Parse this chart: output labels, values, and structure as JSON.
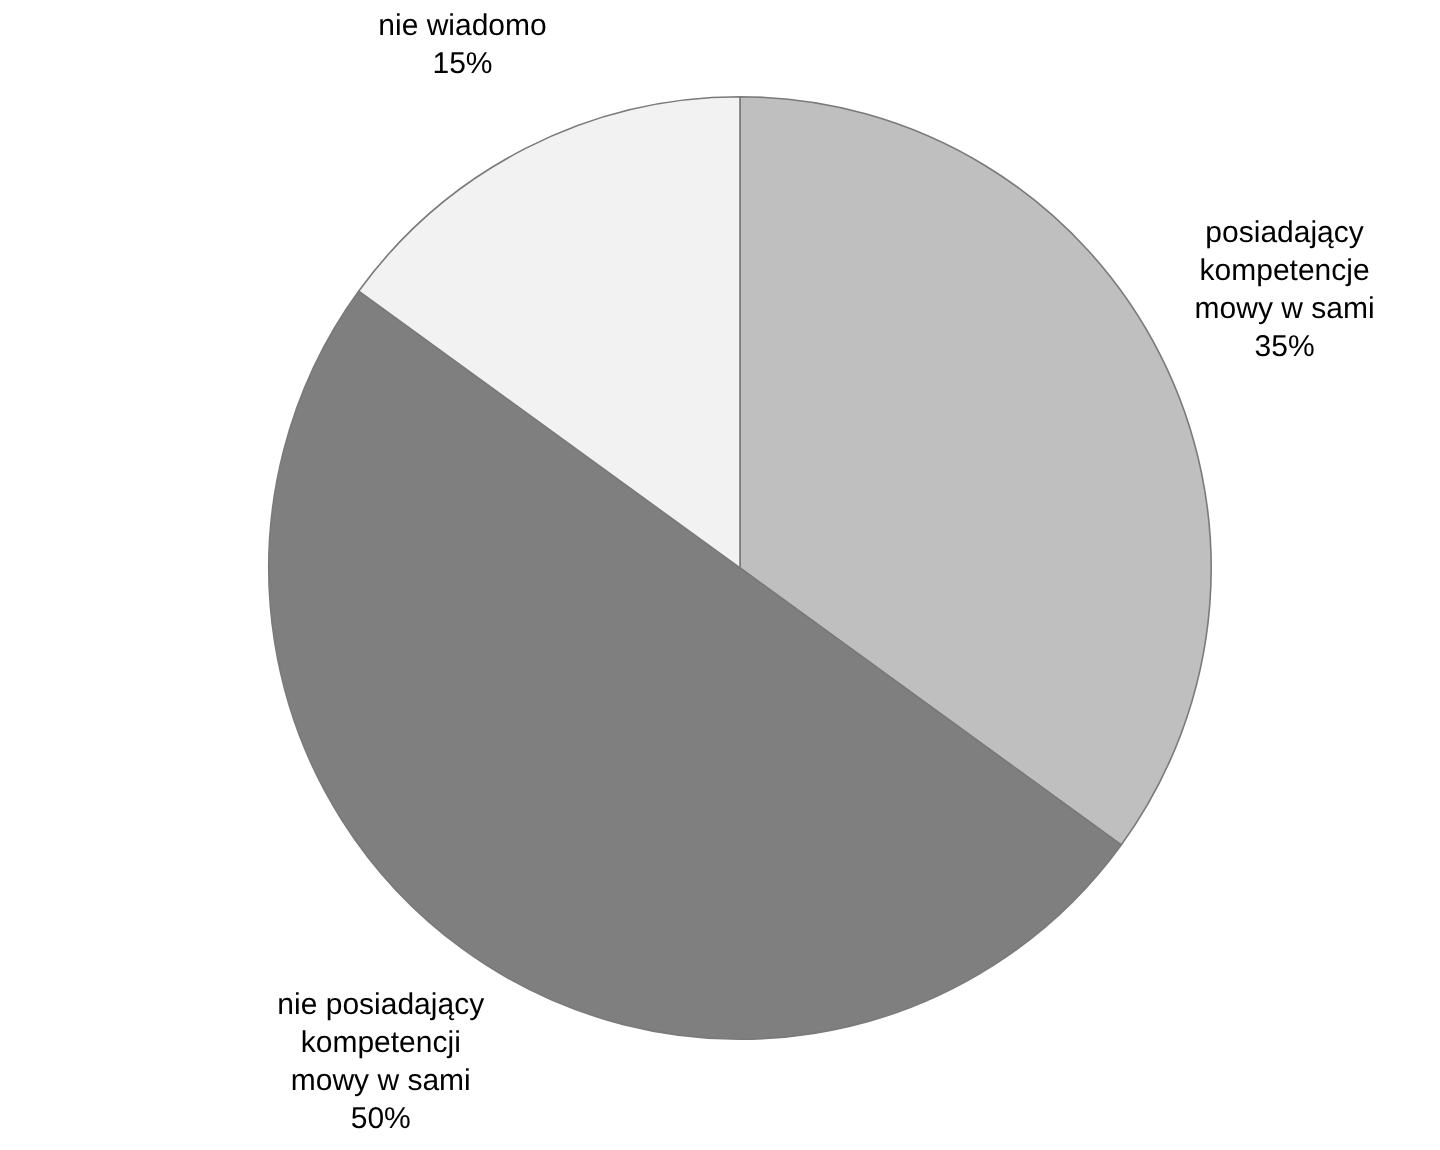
{
  "chart_data": {
    "type": "pie",
    "categories": [
      "posiadający kompetencje mowy w sami",
      "nie posiadający kompetencji mowy w sami",
      "nie wiadomo"
    ],
    "values": [
      35,
      50,
      15
    ],
    "colors": [
      "#bfbfbf",
      "#7f7f7f",
      "#f2f2f2"
    ],
    "value_labels": [
      "35%",
      "50%",
      "15%"
    ],
    "legend": false
  }
}
